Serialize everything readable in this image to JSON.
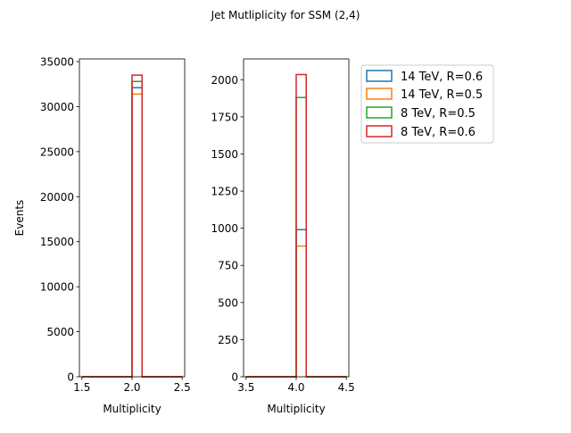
{
  "figure_title": "Jet Mutliplicity for SSM (2,4)",
  "chart_data": [
    {
      "type": "step",
      "title": "",
      "xlabel": "Multiplicity",
      "ylabel": "Events",
      "xlim": [
        1.475,
        2.525
      ],
      "ylim": [
        0,
        35300
      ],
      "xticks": [
        "1.5",
        "2.0",
        "2.5"
      ],
      "xtick_values": [
        1.5,
        2.0,
        2.5
      ],
      "yticks": [
        "0",
        "5000",
        "10000",
        "15000",
        "20000",
        "25000",
        "30000",
        "35000"
      ],
      "ytick_values": [
        0,
        5000,
        10000,
        15000,
        20000,
        25000,
        30000,
        35000
      ],
      "bin_edges": [
        1.5,
        1.6,
        1.7,
        1.8,
        1.9,
        2.0,
        2.1,
        2.2,
        2.3,
        2.4,
        2.5
      ],
      "series": [
        {
          "name": "14 TeV, R=0.6",
          "color": "#1f77b4",
          "values": [
            0,
            0,
            0,
            0,
            0,
            32100,
            0,
            0,
            0,
            0
          ]
        },
        {
          "name": "14 TeV, R=0.5",
          "color": "#ff7f0e",
          "values": [
            0,
            0,
            0,
            0,
            0,
            31400,
            0,
            0,
            0,
            0
          ]
        },
        {
          "name": "8 TeV, R=0.5",
          "color": "#2ca02c",
          "values": [
            0,
            0,
            0,
            0,
            0,
            32800,
            0,
            0,
            0,
            0
          ]
        },
        {
          "name": "8 TeV, R=0.6",
          "color": "#d62728",
          "values": [
            0,
            0,
            0,
            0,
            0,
            33500,
            0,
            0,
            0,
            0
          ]
        }
      ]
    },
    {
      "type": "step",
      "title": "",
      "xlabel": "Multiplicity",
      "ylabel": "",
      "xlim": [
        3.475,
        4.525
      ],
      "ylim": [
        0,
        2140
      ],
      "xticks": [
        "3.5",
        "4.0",
        "4.5"
      ],
      "xtick_values": [
        3.5,
        4.0,
        4.5
      ],
      "yticks": [
        "0",
        "250",
        "500",
        "750",
        "1000",
        "1250",
        "1500",
        "1750",
        "2000"
      ],
      "ytick_values": [
        0,
        250,
        500,
        750,
        1000,
        1250,
        1500,
        1750,
        2000
      ],
      "bin_edges": [
        3.5,
        3.6,
        3.7,
        3.8,
        3.9,
        4.0,
        4.1,
        4.2,
        4.3,
        4.4,
        4.5
      ],
      "series": [
        {
          "name": "14 TeV, R=0.6",
          "color": "#1f77b4",
          "values": [
            0,
            0,
            0,
            0,
            0,
            990,
            0,
            0,
            0,
            0
          ]
        },
        {
          "name": "14 TeV, R=0.5",
          "color": "#ff7f0e",
          "values": [
            0,
            0,
            0,
            0,
            0,
            880,
            0,
            0,
            0,
            0
          ]
        },
        {
          "name": "8 TeV, R=0.5",
          "color": "#2ca02c",
          "values": [
            0,
            0,
            0,
            0,
            0,
            1880,
            0,
            0,
            0,
            0
          ]
        },
        {
          "name": "8 TeV, R=0.6",
          "color": "#d62728",
          "values": [
            0,
            0,
            0,
            0,
            0,
            2035,
            0,
            0,
            0,
            0
          ]
        }
      ]
    }
  ],
  "legend": {
    "placement": "outside-right-top",
    "entries": [
      {
        "label": "14 TeV, R=0.6",
        "color": "#1f77b4"
      },
      {
        "label": "14 TeV, R=0.5",
        "color": "#ff7f0e"
      },
      {
        "label": "8 TeV, R=0.5",
        "color": "#2ca02c"
      },
      {
        "label": "8 TeV, R=0.6",
        "color": "#d62728"
      }
    ]
  }
}
